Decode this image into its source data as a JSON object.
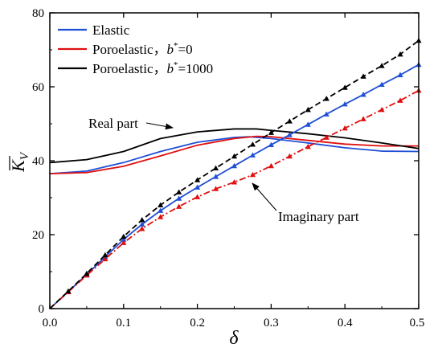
{
  "chart_data": {
    "type": "line",
    "xlabel": "δ",
    "ylabel": "K̄V",
    "ylabel_main": "K",
    "ylabel_sub": "V",
    "xlim": [
      0,
      0.5
    ],
    "ylim": [
      0,
      80
    ],
    "x_ticks": [
      "0.0",
      "0.1",
      "0.2",
      "0.3",
      "0.4",
      "0.5"
    ],
    "y_ticks": [
      "0",
      "20",
      "40",
      "60",
      "80"
    ],
    "grid": false,
    "legend_position": "top-left",
    "legend": [
      {
        "name": "Elastic",
        "color": "#1f4fd6"
      },
      {
        "name": "Poroelastic，",
        "b_label": "b*=0",
        "b_prefix": "b",
        "b_rest": "=0",
        "color": "#e01010"
      },
      {
        "name": "Poroelastic，",
        "b_label": "b*=1000",
        "b_prefix": "b",
        "b_rest": "=1000",
        "color": "#000000"
      }
    ],
    "annotations": {
      "real": "Real part",
      "imag": "Imaginary part"
    },
    "series": [
      {
        "key": "elastic_real",
        "color": "#1f4fd6",
        "style": "solid",
        "marker": "none",
        "x": [
          0,
          0.05,
          0.1,
          0.15,
          0.2,
          0.25,
          0.27,
          0.3,
          0.35,
          0.4,
          0.45,
          0.5
        ],
        "y": [
          36.5,
          37.2,
          39.5,
          42.5,
          45.0,
          46.3,
          46.5,
          46.0,
          44.8,
          43.5,
          42.6,
          42.5
        ]
      },
      {
        "key": "poro0_real",
        "color": "#e01010",
        "style": "solid",
        "marker": "none",
        "x": [
          0,
          0.05,
          0.1,
          0.15,
          0.2,
          0.25,
          0.28,
          0.3,
          0.35,
          0.4,
          0.45,
          0.5
        ],
        "y": [
          36.5,
          36.8,
          38.5,
          41.3,
          44.2,
          46.0,
          46.6,
          46.5,
          45.5,
          44.5,
          44.0,
          44.0
        ]
      },
      {
        "key": "poro1000_real",
        "color": "#000000",
        "style": "solid",
        "marker": "none",
        "x": [
          0,
          0.05,
          0.1,
          0.15,
          0.2,
          0.25,
          0.28,
          0.3,
          0.35,
          0.4,
          0.45,
          0.5
        ],
        "y": [
          39.5,
          40.3,
          42.5,
          46.0,
          47.8,
          48.6,
          48.6,
          48.2,
          47.3,
          46.2,
          44.8,
          43.3
        ]
      },
      {
        "key": "elastic_imag",
        "color": "#1f4fd6",
        "style": "solid",
        "marker": "triangle",
        "x": [
          0,
          0.025,
          0.05,
          0.075,
          0.1,
          0.125,
          0.15,
          0.175,
          0.2,
          0.225,
          0.25,
          0.275,
          0.3,
          0.325,
          0.35,
          0.375,
          0.4,
          0.425,
          0.45,
          0.475,
          0.5
        ],
        "y": [
          0,
          4.6,
          9.2,
          14.0,
          18.7,
          22.8,
          26.5,
          29.8,
          32.8,
          35.7,
          38.6,
          41.5,
          44.3,
          47.0,
          49.8,
          52.6,
          55.3,
          57.9,
          60.6,
          63.2,
          66.0
        ]
      },
      {
        "key": "poro0_imag",
        "color": "#e01010",
        "style": "dashdot",
        "marker": "triangle",
        "x": [
          0,
          0.025,
          0.05,
          0.075,
          0.1,
          0.125,
          0.15,
          0.175,
          0.2,
          0.225,
          0.25,
          0.275,
          0.3,
          0.325,
          0.35,
          0.375,
          0.4,
          0.425,
          0.45,
          0.475,
          0.5
        ],
        "y": [
          0,
          4.5,
          9.0,
          13.4,
          17.8,
          21.6,
          24.8,
          27.6,
          30.2,
          32.4,
          34.2,
          36.2,
          38.6,
          41.2,
          43.8,
          46.3,
          48.8,
          51.3,
          53.8,
          56.3,
          59.0
        ]
      },
      {
        "key": "poro1000_imag",
        "color": "#000000",
        "style": "dashed",
        "marker": "triangle",
        "x": [
          0,
          0.025,
          0.05,
          0.075,
          0.1,
          0.125,
          0.15,
          0.175,
          0.2,
          0.225,
          0.25,
          0.275,
          0.3,
          0.325,
          0.35,
          0.375,
          0.4,
          0.425,
          0.45,
          0.475,
          0.5
        ],
        "y": [
          0,
          4.7,
          9.5,
          14.5,
          19.5,
          24.0,
          28.0,
          31.5,
          34.8,
          38.0,
          41.2,
          44.4,
          47.6,
          50.7,
          53.8,
          56.8,
          59.8,
          62.8,
          65.7,
          68.8,
          72.5
        ]
      }
    ]
  }
}
